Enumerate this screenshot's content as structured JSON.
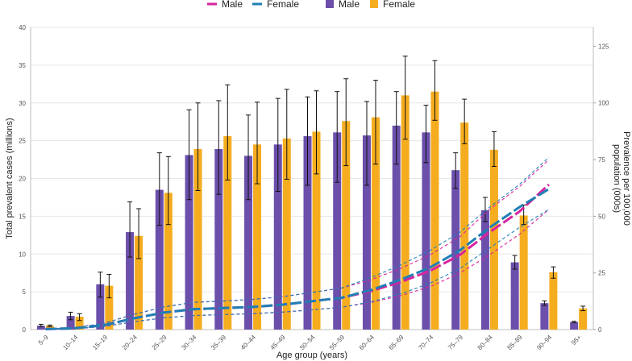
{
  "chart_data": {
    "type": "bar",
    "categories": [
      "5–9",
      "10–14",
      "15–19",
      "20–24",
      "25–29",
      "30–34",
      "35–39",
      "40–44",
      "45–49",
      "50–54",
      "55–59",
      "60–64",
      "65–69",
      "70–74",
      "75–79",
      "80–84",
      "85–89",
      "90–94",
      "95+"
    ],
    "xlabel": "Age group (years)",
    "ylabel": "Total prevalent cases (millions)",
    "y2label_line1": "Prevalence per 100,000",
    "y2label_line2": "population (000s)",
    "ylim": [
      0,
      40
    ],
    "y_ticks": [
      0,
      5,
      10,
      15,
      20,
      25,
      30,
      35,
      40
    ],
    "y2lim": [
      0,
      133.33
    ],
    "y2_ticks": [
      0,
      25,
      50,
      75,
      100,
      125
    ],
    "grid": true,
    "legend": {
      "position": "top",
      "items": [
        {
          "kind": "line",
          "label": "Male",
          "color": "#d6249f"
        },
        {
          "kind": "line",
          "label": "Female",
          "color": "#1f7fb4"
        },
        {
          "kind": "bar",
          "label": "Male",
          "color": "#6b4fab"
        },
        {
          "kind": "bar",
          "label": "Female",
          "color": "#f5ad1f"
        }
      ]
    },
    "series": [
      {
        "name": "Male",
        "kind": "bar",
        "axis": "left",
        "color": "#6b4fab",
        "values": [
          0.5,
          1.8,
          6.0,
          12.9,
          18.5,
          23.1,
          23.9,
          23.0,
          24.5,
          25.6,
          26.1,
          25.7,
          27.0,
          26.1,
          21.1,
          15.8,
          8.9,
          3.5,
          1.0
        ],
        "err_low": [
          0.4,
          1.3,
          4.3,
          9.6,
          13.8,
          17.2,
          17.9,
          17.2,
          18.3,
          19.1,
          19.5,
          19.1,
          21.9,
          22.1,
          18.7,
          14.3,
          8.0,
          3.2,
          0.9
        ],
        "err_high": [
          0.7,
          2.3,
          7.6,
          16.9,
          23.4,
          29.1,
          30.3,
          28.4,
          30.6,
          30.8,
          31.5,
          30.2,
          31.5,
          29.7,
          23.4,
          17.5,
          9.8,
          3.8,
          1.1
        ]
      },
      {
        "name": "Female",
        "kind": "bar",
        "axis": "left",
        "color": "#f5ad1f",
        "values": [
          0.5,
          1.7,
          5.8,
          12.4,
          18.1,
          23.9,
          25.6,
          24.5,
          25.3,
          26.2,
          27.6,
          28.1,
          31.0,
          31.5,
          27.4,
          23.8,
          15.1,
          7.6,
          2.8
        ],
        "err_low": [
          0.4,
          1.2,
          4.2,
          9.4,
          13.9,
          18.4,
          19.8,
          19.3,
          19.9,
          20.6,
          21.7,
          21.9,
          25.2,
          27.7,
          24.6,
          21.6,
          13.9,
          6.8,
          2.5
        ],
        "err_high": [
          0.6,
          2.1,
          7.3,
          16.0,
          22.9,
          30.0,
          32.4,
          30.1,
          31.8,
          31.6,
          33.2,
          33.0,
          36.2,
          35.6,
          30.5,
          26.2,
          16.5,
          8.3,
          3.1
        ]
      },
      {
        "name": "Male",
        "kind": "line",
        "axis": "right",
        "color": "#d6249f",
        "values": [
          0.2,
          0.6,
          2.0,
          5.0,
          7.5,
          9.0,
          9.5,
          10.0,
          11.0,
          12.5,
          14.0,
          17.0,
          21.0,
          26.0,
          33.0,
          43.0,
          52.0,
          64.0,
          null
        ],
        "ci_low": [
          0.1,
          0.4,
          1.4,
          3.5,
          5.2,
          6.2,
          6.6,
          7.0,
          7.7,
          8.7,
          9.8,
          12.0,
          15.0,
          19.0,
          25.0,
          33.0,
          42.0,
          53.0,
          null
        ],
        "ci_high": [
          0.3,
          0.8,
          2.8,
          6.8,
          10.0,
          12.0,
          12.6,
          13.3,
          14.5,
          16.4,
          18.3,
          22.0,
          27.0,
          33.0,
          41.0,
          53.0,
          63.0,
          75.0,
          null
        ]
      },
      {
        "name": "Female",
        "kind": "line",
        "axis": "right",
        "color": "#1f7fb4",
        "values": [
          0.2,
          0.6,
          2.0,
          5.0,
          7.5,
          9.0,
          9.5,
          10.0,
          11.0,
          12.5,
          14.0,
          17.5,
          22.0,
          27.5,
          35.0,
          45.0,
          54.0,
          62.0,
          null
        ],
        "ci_low": [
          0.1,
          0.4,
          1.4,
          3.5,
          5.2,
          6.2,
          6.6,
          7.0,
          7.7,
          8.7,
          9.8,
          12.3,
          15.8,
          20.5,
          27.0,
          36.0,
          45.0,
          53.0,
          null
        ],
        "ci_high": [
          0.3,
          0.8,
          2.8,
          6.8,
          10.0,
          12.0,
          12.6,
          13.3,
          14.5,
          16.4,
          18.3,
          23.0,
          28.5,
          35.0,
          43.0,
          54.0,
          64.0,
          76.0,
          null
        ]
      }
    ]
  }
}
